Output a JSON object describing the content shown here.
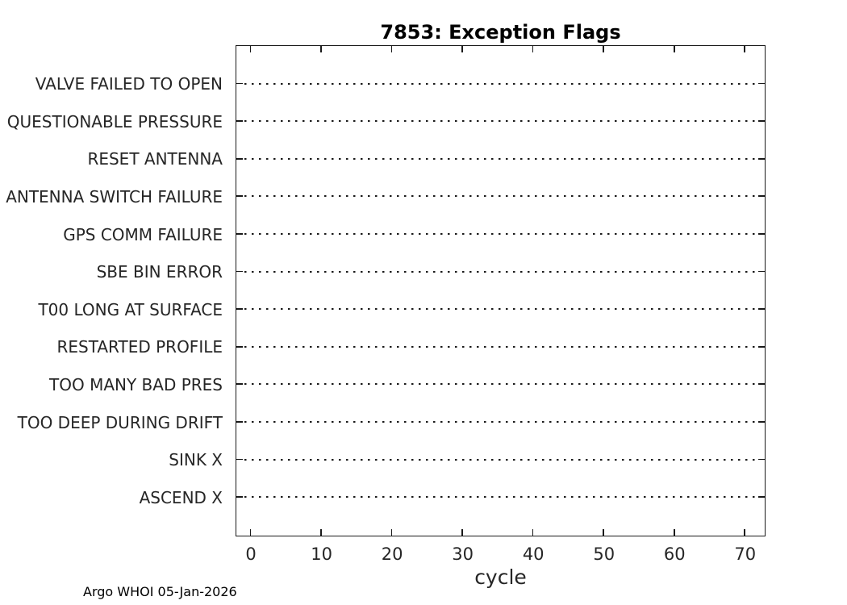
{
  "title": "7853: Exception Flags",
  "footer": "Argo WHOI 05-Jan-2026",
  "chart_data": {
    "type": "scatter",
    "title": "7853: Exception Flags",
    "xlabel": "cycle",
    "ylabel": "",
    "categories": [
      "VALVE FAILED TO OPEN",
      "QUESTIONABLE PRESSURE",
      "RESET ANTENNA",
      "ANTENNA SWITCH FAILURE",
      "GPS COMM FAILURE",
      "SBE BIN ERROR",
      "T00 LONG AT SURFACE",
      "RESTARTED PROFILE",
      "TOO MANY BAD PRES",
      "TOO DEEP DURING DRIFT",
      "SINK X",
      "ASCEND X"
    ],
    "x_ticks": [
      0,
      10,
      20,
      30,
      40,
      50,
      60,
      70
    ],
    "xlim": [
      -2,
      72.7
    ],
    "series": [],
    "points": [],
    "grid": "dotted-horizontal-baselines",
    "legend_position": "none",
    "box": "on",
    "tick_direction": "in",
    "colors": {
      "line": "#1a1a1a",
      "text": "#262626",
      "title": "#000000",
      "background": "#ffffff"
    }
  }
}
